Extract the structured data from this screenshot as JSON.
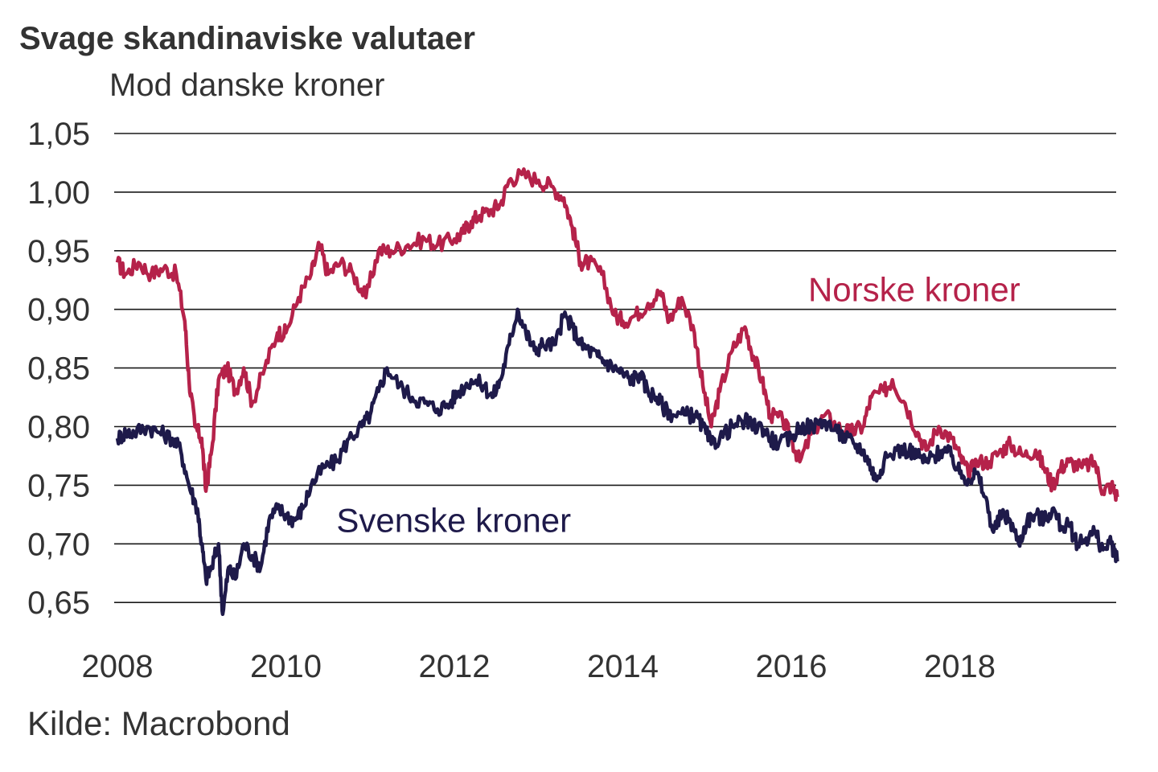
{
  "title": "Svage skandinaviske valutaer",
  "subtitle": "Mod danske kroner",
  "source": "Kilde: Macrobond",
  "chart_data": {
    "type": "line",
    "title": "Svage skandinaviske valutaer",
    "ylabel": "Mod danske kroner",
    "xlabel": "",
    "xlim": [
      2008,
      2019.9
    ],
    "ylim": [
      0.63,
      1.05
    ],
    "x_ticks": [
      "2008",
      "2010",
      "2012",
      "2014",
      "2016",
      "2018"
    ],
    "y_ticks": [
      "1,05",
      "1,00",
      "0,95",
      "0,90",
      "0,85",
      "0,80",
      "0,75",
      "0,70",
      "0,65"
    ],
    "grid": true,
    "series": [
      {
        "name": "Norske kroner",
        "color": "#b5224a",
        "points": [
          [
            2008.0,
            0.94
          ],
          [
            2008.1,
            0.93
          ],
          [
            2008.25,
            0.94
          ],
          [
            2008.4,
            0.93
          ],
          [
            2008.55,
            0.935
          ],
          [
            2008.7,
            0.93
          ],
          [
            2008.8,
            0.89
          ],
          [
            2008.85,
            0.84
          ],
          [
            2008.92,
            0.8
          ],
          [
            2009.0,
            0.79
          ],
          [
            2009.05,
            0.745
          ],
          [
            2009.12,
            0.78
          ],
          [
            2009.2,
            0.84
          ],
          [
            2009.3,
            0.85
          ],
          [
            2009.4,
            0.83
          ],
          [
            2009.5,
            0.85
          ],
          [
            2009.6,
            0.82
          ],
          [
            2009.75,
            0.85
          ],
          [
            2009.9,
            0.88
          ],
          [
            2010.0,
            0.88
          ],
          [
            2010.15,
            0.91
          ],
          [
            2010.3,
            0.93
          ],
          [
            2010.4,
            0.955
          ],
          [
            2010.5,
            0.93
          ],
          [
            2010.65,
            0.94
          ],
          [
            2010.8,
            0.93
          ],
          [
            2010.95,
            0.91
          ],
          [
            2011.1,
            0.95
          ],
          [
            2011.25,
            0.95
          ],
          [
            2011.45,
            0.955
          ],
          [
            2011.65,
            0.96
          ],
          [
            2011.8,
            0.955
          ],
          [
            2012.0,
            0.96
          ],
          [
            2012.1,
            0.965
          ],
          [
            2012.2,
            0.975
          ],
          [
            2012.3,
            0.98
          ],
          [
            2012.45,
            0.985
          ],
          [
            2012.55,
            0.99
          ],
          [
            2012.65,
            1.01
          ],
          [
            2012.8,
            1.015
          ],
          [
            2013.0,
            1.01
          ],
          [
            2013.15,
            1.005
          ],
          [
            2013.3,
            0.995
          ],
          [
            2013.4,
            0.97
          ],
          [
            2013.5,
            0.94
          ],
          [
            2013.6,
            0.94
          ],
          [
            2013.75,
            0.93
          ],
          [
            2013.9,
            0.895
          ],
          [
            2014.0,
            0.89
          ],
          [
            2014.15,
            0.895
          ],
          [
            2014.3,
            0.905
          ],
          [
            2014.45,
            0.915
          ],
          [
            2014.55,
            0.89
          ],
          [
            2014.7,
            0.91
          ],
          [
            2014.85,
            0.88
          ],
          [
            2014.95,
            0.835
          ],
          [
            2015.05,
            0.8
          ],
          [
            2015.15,
            0.83
          ],
          [
            2015.3,
            0.865
          ],
          [
            2015.45,
            0.885
          ],
          [
            2015.55,
            0.86
          ],
          [
            2015.65,
            0.84
          ],
          [
            2015.75,
            0.81
          ],
          [
            2015.9,
            0.805
          ],
          [
            2016.0,
            0.79
          ],
          [
            2016.1,
            0.77
          ],
          [
            2016.25,
            0.795
          ],
          [
            2016.4,
            0.81
          ],
          [
            2016.55,
            0.8
          ],
          [
            2016.7,
            0.795
          ],
          [
            2016.85,
            0.8
          ],
          [
            2016.95,
            0.825
          ],
          [
            2017.1,
            0.83
          ],
          [
            2017.2,
            0.84
          ],
          [
            2017.35,
            0.82
          ],
          [
            2017.5,
            0.795
          ],
          [
            2017.6,
            0.78
          ],
          [
            2017.75,
            0.8
          ],
          [
            2017.9,
            0.79
          ],
          [
            2018.0,
            0.775
          ],
          [
            2018.1,
            0.76
          ],
          [
            2018.2,
            0.77
          ],
          [
            2018.35,
            0.77
          ],
          [
            2018.5,
            0.78
          ],
          [
            2018.6,
            0.785
          ],
          [
            2018.75,
            0.775
          ],
          [
            2018.9,
            0.78
          ],
          [
            2019.0,
            0.765
          ],
          [
            2019.1,
            0.75
          ],
          [
            2019.2,
            0.765
          ],
          [
            2019.3,
            0.77
          ],
          [
            2019.45,
            0.765
          ],
          [
            2019.6,
            0.77
          ],
          [
            2019.7,
            0.745
          ],
          [
            2019.8,
            0.75
          ],
          [
            2019.87,
            0.74
          ]
        ]
      },
      {
        "name": "Svenske kroner",
        "color": "#1e1a4a",
        "points": [
          [
            2008.0,
            0.79
          ],
          [
            2008.1,
            0.795
          ],
          [
            2008.2,
            0.795
          ],
          [
            2008.35,
            0.8
          ],
          [
            2008.5,
            0.795
          ],
          [
            2008.65,
            0.79
          ],
          [
            2008.75,
            0.78
          ],
          [
            2008.85,
            0.75
          ],
          [
            2008.95,
            0.73
          ],
          [
            2009.0,
            0.7
          ],
          [
            2009.05,
            0.67
          ],
          [
            2009.12,
            0.68
          ],
          [
            2009.2,
            0.7
          ],
          [
            2009.25,
            0.64
          ],
          [
            2009.32,
            0.68
          ],
          [
            2009.4,
            0.67
          ],
          [
            2009.5,
            0.7
          ],
          [
            2009.6,
            0.69
          ],
          [
            2009.7,
            0.68
          ],
          [
            2009.8,
            0.72
          ],
          [
            2009.9,
            0.73
          ],
          [
            2010.0,
            0.725
          ],
          [
            2010.1,
            0.72
          ],
          [
            2010.2,
            0.73
          ],
          [
            2010.3,
            0.75
          ],
          [
            2010.45,
            0.765
          ],
          [
            2010.6,
            0.77
          ],
          [
            2010.75,
            0.79
          ],
          [
            2010.9,
            0.8
          ],
          [
            2011.0,
            0.81
          ],
          [
            2011.1,
            0.83
          ],
          [
            2011.2,
            0.85
          ],
          [
            2011.35,
            0.835
          ],
          [
            2011.5,
            0.825
          ],
          [
            2011.65,
            0.82
          ],
          [
            2011.8,
            0.815
          ],
          [
            2011.95,
            0.82
          ],
          [
            2012.05,
            0.83
          ],
          [
            2012.2,
            0.84
          ],
          [
            2012.35,
            0.835
          ],
          [
            2012.45,
            0.825
          ],
          [
            2012.55,
            0.84
          ],
          [
            2012.65,
            0.87
          ],
          [
            2012.75,
            0.9
          ],
          [
            2012.85,
            0.88
          ],
          [
            2012.95,
            0.865
          ],
          [
            2013.05,
            0.87
          ],
          [
            2013.2,
            0.87
          ],
          [
            2013.3,
            0.895
          ],
          [
            2013.4,
            0.885
          ],
          [
            2013.5,
            0.87
          ],
          [
            2013.6,
            0.865
          ],
          [
            2013.7,
            0.86
          ],
          [
            2013.8,
            0.855
          ],
          [
            2013.9,
            0.85
          ],
          [
            2014.0,
            0.845
          ],
          [
            2014.1,
            0.84
          ],
          [
            2014.2,
            0.845
          ],
          [
            2014.3,
            0.83
          ],
          [
            2014.4,
            0.825
          ],
          [
            2014.5,
            0.815
          ],
          [
            2014.6,
            0.81
          ],
          [
            2014.75,
            0.81
          ],
          [
            2014.85,
            0.81
          ],
          [
            2014.95,
            0.8
          ],
          [
            2015.05,
            0.785
          ],
          [
            2015.15,
            0.79
          ],
          [
            2015.3,
            0.8
          ],
          [
            2015.45,
            0.805
          ],
          [
            2015.55,
            0.8
          ],
          [
            2015.65,
            0.8
          ],
          [
            2015.75,
            0.79
          ],
          [
            2015.85,
            0.785
          ],
          [
            2016.0,
            0.79
          ],
          [
            2016.1,
            0.8
          ],
          [
            2016.25,
            0.8
          ],
          [
            2016.4,
            0.805
          ],
          [
            2016.55,
            0.795
          ],
          [
            2016.65,
            0.79
          ],
          [
            2016.75,
            0.785
          ],
          [
            2016.85,
            0.78
          ],
          [
            2016.95,
            0.765
          ],
          [
            2017.0,
            0.755
          ],
          [
            2017.1,
            0.77
          ],
          [
            2017.25,
            0.78
          ],
          [
            2017.4,
            0.78
          ],
          [
            2017.5,
            0.775
          ],
          [
            2017.6,
            0.77
          ],
          [
            2017.7,
            0.775
          ],
          [
            2017.8,
            0.78
          ],
          [
            2017.9,
            0.775
          ],
          [
            2018.0,
            0.76
          ],
          [
            2018.1,
            0.755
          ],
          [
            2018.2,
            0.76
          ],
          [
            2018.3,
            0.74
          ],
          [
            2018.4,
            0.71
          ],
          [
            2018.5,
            0.725
          ],
          [
            2018.6,
            0.72
          ],
          [
            2018.7,
            0.7
          ],
          [
            2018.8,
            0.72
          ],
          [
            2018.9,
            0.725
          ],
          [
            2019.0,
            0.72
          ],
          [
            2019.1,
            0.73
          ],
          [
            2019.2,
            0.715
          ],
          [
            2019.3,
            0.715
          ],
          [
            2019.4,
            0.7
          ],
          [
            2019.5,
            0.705
          ],
          [
            2019.6,
            0.71
          ],
          [
            2019.7,
            0.695
          ],
          [
            2019.8,
            0.7
          ],
          [
            2019.87,
            0.685
          ]
        ]
      }
    ],
    "annotations": [
      {
        "text": "Norske kroner",
        "x": 2016.2,
        "y": 0.907,
        "color": "#b5224a"
      },
      {
        "text": "Svenske kroner",
        "x": 2010.6,
        "y": 0.71,
        "color": "#1e1a4a"
      }
    ]
  }
}
